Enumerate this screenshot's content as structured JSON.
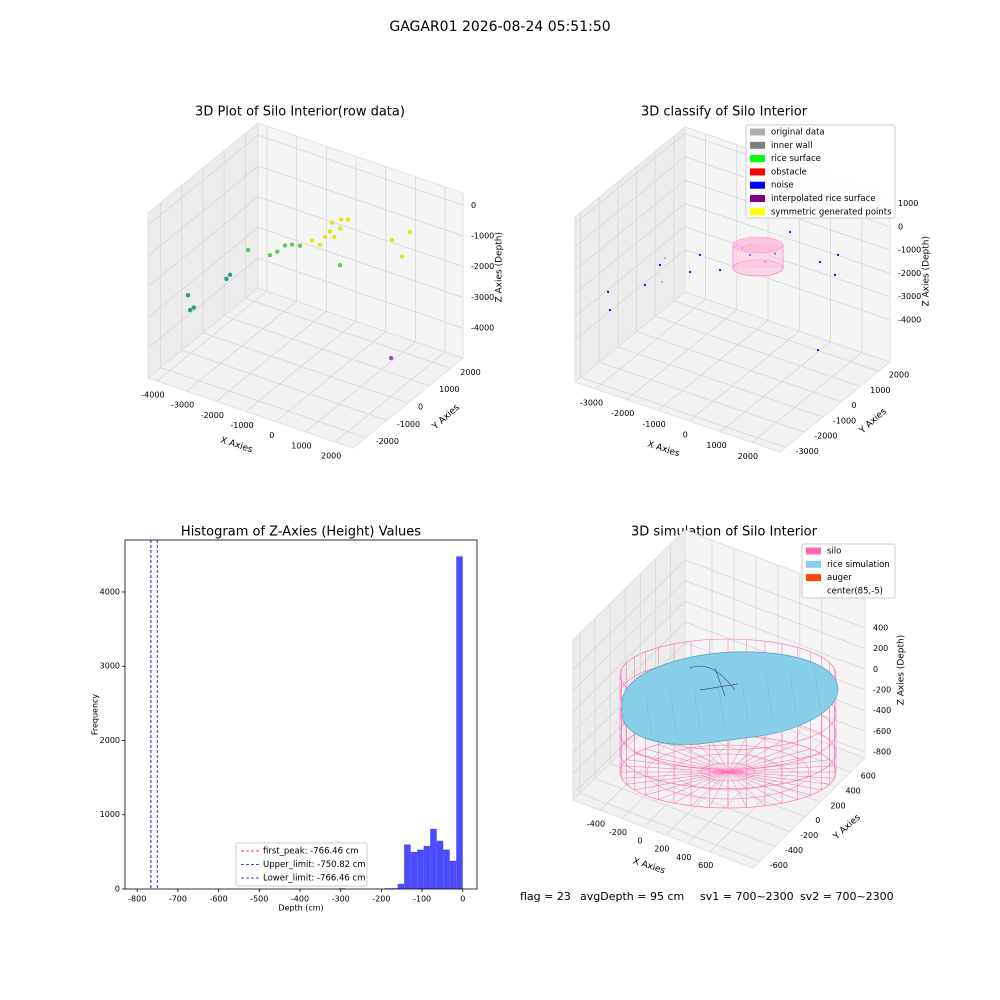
{
  "suptitle": "GAGAR01 2026-08-24 05:51:50",
  "chart_data": [
    {
      "type": "scatter3d",
      "title": "3D Plot of Silo Interior(row data)",
      "xlabel": "X Axies",
      "ylabel": "Y Axies",
      "zlabel": "Z Axies (Depth)",
      "xlim": [
        -4300,
        2600
      ],
      "ylim": [
        -2600,
        2600
      ],
      "zlim": [
        -4970,
        400
      ],
      "xticks": [
        -4000,
        -3000,
        -2000,
        -1000,
        0,
        1000,
        2000
      ],
      "yticks": [
        -2000,
        -1000,
        0,
        1000,
        2000
      ],
      "zticks": [
        0,
        -1000,
        -2000,
        -3000,
        -4000
      ],
      "series": [
        {
          "color": "#2a9a8a",
          "x": [
            -3693,
            -3624,
            -3500,
            -2280,
            -2400
          ],
          "y": [
            -1560,
            -1560,
            -1560,
            -1560,
            -1560
          ],
          "z": [
            -2660,
            -3120,
            -3000,
            -1530,
            -1700
          ]
        },
        {
          "color": "#5ec962",
          "x": [
            -2782,
            -2044,
            -1540,
            -1036,
            -1800,
            -1300,
            310
          ],
          "y": [
            0,
            0,
            0,
            0,
            0,
            0,
            0
          ],
          "z": [
            -1770,
            -1690,
            -1210,
            -1050,
            -1500,
            -1100,
            -1240
          ]
        },
        {
          "color": "#e8e419",
          "x": [
            -395,
            -733,
            -57,
            -1000,
            -560,
            -250,
            -450,
            -150,
            213,
            1320,
            1924,
            1655
          ],
          "y": [
            520,
            520,
            520,
            520,
            520,
            520,
            700,
            700,
            520,
            1040,
            1040,
            1040
          ],
          "z": [
            -670,
            -1210,
            -460,
            -1160,
            -900,
            -800,
            -500,
            -300,
            -80,
            -670,
            -220,
            -1100
          ]
        },
        {
          "color": "#9b4fb5",
          "x": [
            1290
          ],
          "y": [
            1040
          ],
          "z": [
            -4525
          ]
        }
      ]
    },
    {
      "type": "scatter3d",
      "title": "3D classify of Silo Interior",
      "xlabel": "X Axies",
      "ylabel": "Y Axies",
      "zlabel": "Z Axies (Depth)",
      "xlim": [
        -3655,
        2900
      ],
      "ylim": [
        -3300,
        2600
      ],
      "zlim": [
        -5810,
        1280
      ],
      "xticks": [
        -3000,
        -2000,
        -1000,
        0,
        1000,
        2000
      ],
      "yticks": [
        -3000,
        -2000,
        -1000,
        0,
        1000,
        2000
      ],
      "zticks": [
        1000,
        0,
        -1000,
        -2000,
        -3000,
        -4000
      ],
      "legend": "upper right",
      "series": [
        {
          "name": "original data",
          "color": "#b0b0b0",
          "x": [
            -2534,
            -2632
          ],
          "y": [
            -350,
            -350
          ],
          "z": [
            -1903,
            -2974
          ]
        },
        {
          "name": "inner wall",
          "color": "#808080",
          "x": [],
          "y": [],
          "z": []
        },
        {
          "name": "rice surface",
          "color": "#00ff00",
          "x": [
            180,
            409,
            300
          ],
          "y": [
            -350,
            -350,
            -350
          ],
          "z": [
            -95,
            -20,
            -60
          ]
        },
        {
          "name": "obstacle",
          "color": "#ff0000",
          "x": [],
          "y": [],
          "z": []
        },
        {
          "name": "noise",
          "color": "#0000ff",
          "x": [
            -3301,
            -3242,
            -2121,
            -1643,
            -1734,
            -1420,
            -777,
            409,
            1366,
            1845,
            1943,
            1300,
            180,
            665,
            -76,
            980
          ],
          "y": [
            -2120,
            -2120,
            -2120,
            -2120,
            -350,
            -350,
            -350,
            1420,
            1420,
            1420,
            1420,
            1420,
            -350,
            -350,
            -350,
            -350
          ],
          "z": [
            -2549,
            -3300,
            -1712,
            -634,
            -2137,
            -1258,
            -1613,
            -592,
            -1443,
            -1783,
            -875,
            -5257,
            -528,
            -606,
            -344,
            -100
          ]
        },
        {
          "name": "interpolated rice surface",
          "color": "#800080",
          "x": [],
          "y": [],
          "z": []
        },
        {
          "name": "symmetric generated points",
          "color": "#ffff00",
          "x": [],
          "y": [],
          "z": []
        }
      ]
    },
    {
      "type": "histogram",
      "title": "Histogram of Z-Axies (Height) Values",
      "xlabel": "Depth (cm)",
      "ylabel": "Frequency",
      "bins": [
        -304,
        -288,
        -272,
        -256,
        -240,
        -224,
        -208,
        -192,
        -176,
        -160,
        -144,
        -128,
        -112,
        -96,
        -80,
        -64,
        -48,
        -32,
        -16,
        0
      ],
      "counts": [
        10,
        0,
        0,
        0,
        0,
        0,
        0,
        10,
        10,
        70,
        600,
        500,
        530,
        580,
        810,
        650,
        530,
        380,
        4480
      ],
      "color": "#0000ff",
      "alpha": 0.7,
      "xlim": [
        -830,
        35
      ],
      "ylim": [
        0,
        4700
      ],
      "xticks": [
        -800,
        -700,
        -600,
        -500,
        -400,
        -300,
        -200,
        -100,
        0
      ],
      "yticks": [
        0,
        1000,
        2000,
        3000,
        4000
      ],
      "lines": [
        {
          "label": "first_peak: -766.46 cm",
          "value": -766.46,
          "color": "#ff0000"
        },
        {
          "label": "Upper_limit: -750.82 cm",
          "value": -750.82,
          "color": "#0000ff"
        },
        {
          "label": "Lower_limit: -766.46 cm",
          "value": -766.46,
          "color": "#0000ff"
        }
      ]
    },
    {
      "type": "surface3d",
      "title": "3D simulation of Silo Interior",
      "xlabel": "X Axies",
      "ylabel": "Y Axies",
      "zlabel": "Z Axies (Depth)",
      "xlim": [
        -646,
        994
      ],
      "ylim": [
        -690,
        790
      ],
      "zlim": [
        -858,
        690
      ],
      "xticks": [
        -400,
        -200,
        0,
        200,
        400,
        600
      ],
      "yticks": [
        -600,
        -400,
        -200,
        0,
        200,
        400,
        600
      ],
      "zticks": [
        400,
        200,
        0,
        -200,
        -400,
        -600,
        -800
      ],
      "legend": "upper right",
      "legend_items": [
        {
          "name": "silo",
          "color": "#ff69b4"
        },
        {
          "name": "rice simulation",
          "color": "#87ceeb"
        },
        {
          "name": "auger",
          "color": "#ff4500"
        },
        {
          "name": "center(85,-5)",
          "color": "#ffffff"
        }
      ],
      "annotations": [
        "flag = 23",
        "avgDepth = 95 cm",
        "sv1 = 700~2300",
        "sv2 = 700~2300"
      ]
    }
  ]
}
